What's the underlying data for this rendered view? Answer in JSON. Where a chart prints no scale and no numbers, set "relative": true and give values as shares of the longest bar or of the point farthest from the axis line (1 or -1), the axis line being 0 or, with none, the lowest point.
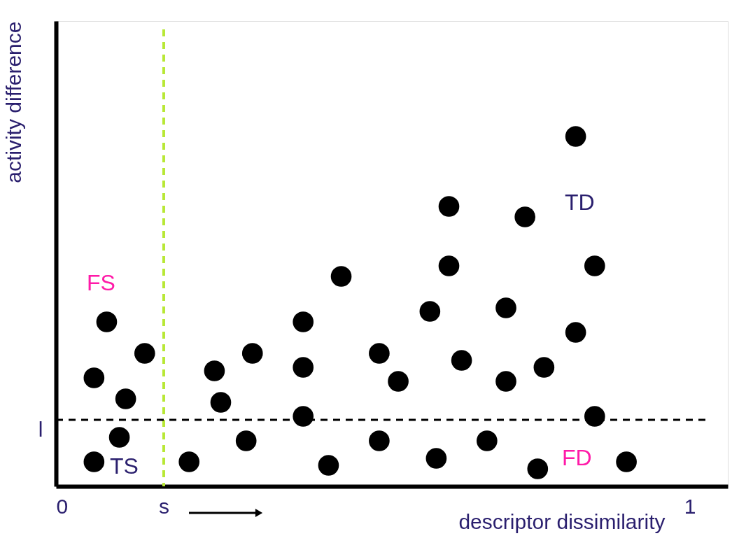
{
  "chart_data": {
    "type": "scatter",
    "xlabel": "descriptor dissimilarity",
    "ylabel": "activity difference",
    "relative": true,
    "x": [
      0.06,
      0.06,
      0.08,
      0.1,
      0.11,
      0.14,
      0.21,
      0.25,
      0.26,
      0.3,
      0.31,
      0.39,
      0.39,
      0.39,
      0.43,
      0.45,
      0.51,
      0.51,
      0.54,
      0.59,
      0.6,
      0.62,
      0.62,
      0.64,
      0.68,
      0.71,
      0.71,
      0.74,
      0.76,
      0.77,
      0.82,
      0.82,
      0.85,
      0.85,
      0.9
    ],
    "series": [
      {
        "color": "#000000",
        "values": [
          0.07,
          0.31,
          0.47,
          0.14,
          0.25,
          0.38,
          0.07,
          0.33,
          0.24,
          0.13,
          0.38,
          0.2,
          0.47,
          0.34,
          0.06,
          0.6,
          0.38,
          0.13,
          0.3,
          0.5,
          0.08,
          0.63,
          0.8,
          0.36,
          0.13,
          0.51,
          0.3,
          0.77,
          0.05,
          0.34,
          1,
          0.44,
          0.63,
          0.2,
          0.07
        ]
      }
    ],
    "xlim": [
      0,
      1.06
    ],
    "xticks": [
      0,
      {
        "value": 0.17,
        "label": "s"
      },
      1
    ],
    "tick_labels": "x",
    "marker": "circle",
    "grid": false,
    "legend": false,
    "ref_lines": [
      {
        "axis": "x",
        "value": 0.17,
        "color": "#b8e835",
        "line_style": "dashed"
      },
      {
        "axis": "y",
        "value": 0.19,
        "label": "l",
        "color": "#000000",
        "line_style": "dashed"
      }
    ],
    "annotations": [
      "FS",
      "TS",
      "TD",
      "FD"
    ]
  }
}
